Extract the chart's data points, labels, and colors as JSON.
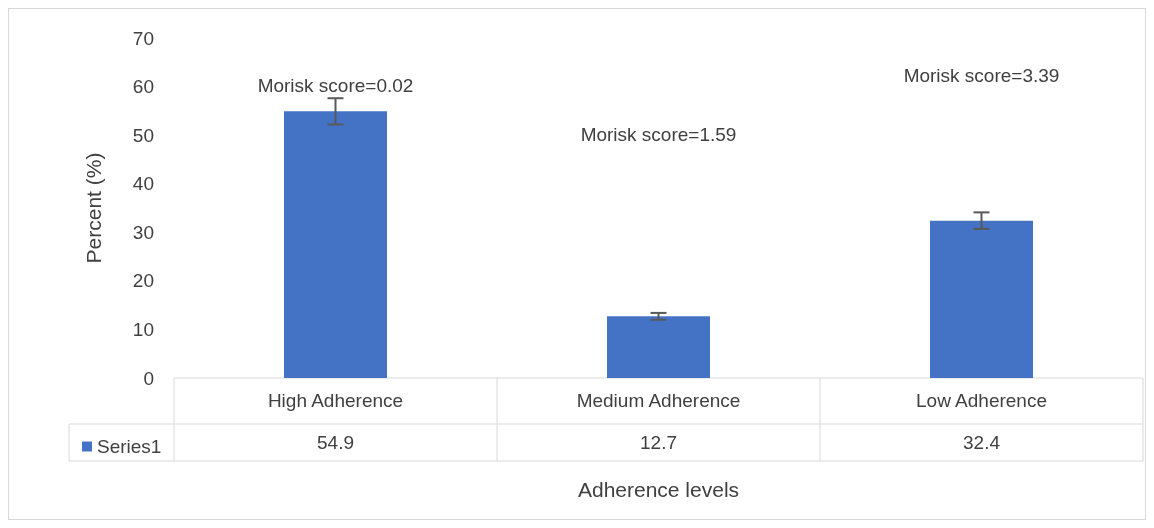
{
  "chart_data": {
    "type": "bar",
    "xlabel": "Adherence levels",
    "ylabel": "Percent (%)",
    "categories": [
      "High Adherence",
      "Medium Adherence",
      "Low Adherence"
    ],
    "series": [
      {
        "name": "Series1",
        "color": "#4472c4",
        "values": [
          54.9,
          12.7,
          32.4
        ],
        "errors": [
          2.7,
          0.7,
          1.7
        ]
      }
    ],
    "ylim": [
      0,
      70
    ],
    "yticks": [
      0,
      10,
      20,
      30,
      40,
      50,
      60,
      70
    ],
    "grid": false,
    "legend": "bottom",
    "data_labels": true,
    "annotations": [
      "Morisk score=0.02",
      "Morisk score=1.59",
      "Morisk score=3.39"
    ]
  }
}
